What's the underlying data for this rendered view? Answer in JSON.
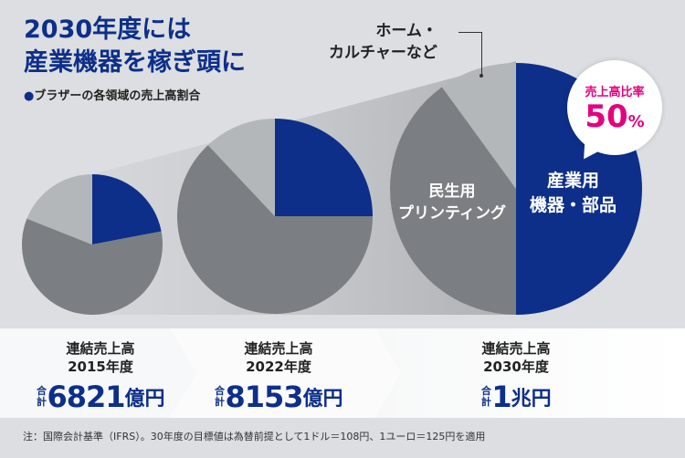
{
  "header": {
    "title_line1": "2030年度には",
    "title_line2": "産業機器を稼ぎ頭に",
    "subtitle_bullet": "●",
    "subtitle": "ブラザーの各領域の売上高割合"
  },
  "labels": {
    "home_line1": "ホーム・",
    "home_line2": "カルチャーなど",
    "printing_line1": "民生用",
    "printing_line2": "プリンティング",
    "industrial_line1": "産業用",
    "industrial_line2": "機器・部品"
  },
  "bubble": {
    "label": "売上高比率",
    "value": "50",
    "unit": "%"
  },
  "colors": {
    "industrial": "#0d2f8a",
    "printing": "#7b7f83",
    "home": "#b4b7ba",
    "accent": "#e5007e",
    "background": "#dcdee1"
  },
  "chart_data": {
    "type": "pie",
    "categories": [
      "産業用機器・部品",
      "民生用プリンティング",
      "ホーム・カルチャーなど"
    ],
    "pies": [
      {
        "year": "2015年度",
        "values": [
          22,
          59,
          19
        ]
      },
      {
        "year": "2022年度",
        "values": [
          25,
          63,
          12
        ]
      },
      {
        "year": "2030年度",
        "values": [
          50,
          40,
          10
        ]
      }
    ]
  },
  "totals": [
    {
      "heading": "連結売上高",
      "year": "2015年度",
      "prefix": "合計",
      "value": "6821",
      "unit": "億円"
    },
    {
      "heading": "連結売上高",
      "year": "2022年度",
      "prefix": "合計",
      "value": "8153",
      "unit": "億円"
    },
    {
      "heading": "連結売上高",
      "year": "2030年度",
      "prefix": "合計",
      "value": "1",
      "unit": "兆円"
    }
  ],
  "footnote": "注：国際会計基準（IFRS）。30年度の目標値は為替前提として1ドル＝108円、1ユーロ＝125円を適用"
}
